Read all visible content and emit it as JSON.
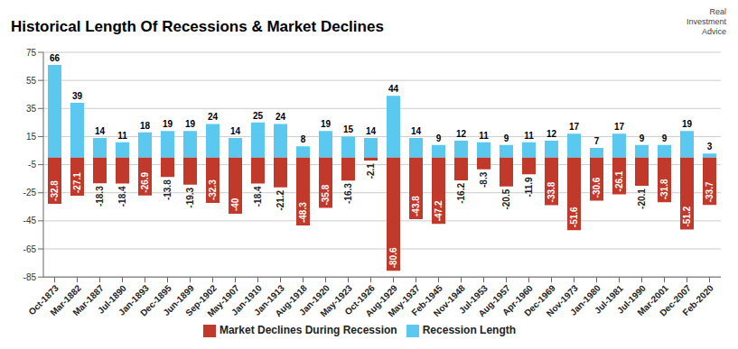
{
  "chart_data": {
    "type": "bar",
    "title": "Historical Length Of Recessions & Market Declines",
    "annotation": "Real\nInvestment\nAdvice",
    "categories": [
      "Oct-1873",
      "Mar-1882",
      "Mar-1887",
      "Jul-1890",
      "Jan-1893",
      "Dec-1895",
      "Jun-1899",
      "Sep-1902",
      "May-1907",
      "Jan-1910",
      "Jan-1913",
      "Aug-1918",
      "Jan-1920",
      "May-1923",
      "Oct-1926",
      "Aug-1929",
      "May-1937",
      "Feb-1945",
      "Nov-1948",
      "Jul-1953",
      "Aug-1957",
      "Apr-1960",
      "Dec-1969",
      "Nov-1973",
      "Jan-1980",
      "Jul-1981",
      "Jul-1990",
      "Mar-2001",
      "Dec-2007",
      "Feb-2020"
    ],
    "series": [
      {
        "name": "Recession Length",
        "color": "#5bc8f0",
        "values": [
          66,
          39,
          14,
          11,
          18,
          19,
          19,
          24,
          14,
          25,
          24,
          8,
          19,
          15,
          14,
          44,
          14,
          9,
          12,
          11,
          9,
          11,
          12,
          17,
          7,
          17,
          9,
          9,
          19,
          3
        ]
      },
      {
        "name": "Market Declines During Recession",
        "color": "#c0392b",
        "values": [
          -32.8,
          -27.1,
          -18.3,
          -18.4,
          -26.9,
          -13.8,
          -19.3,
          -32.3,
          -40.0,
          -18.4,
          -21.2,
          -48.3,
          -35.8,
          -16.3,
          -2.1,
          -80.6,
          -43.8,
          -47.2,
          -16.2,
          -8.3,
          -20.5,
          -11.9,
          -33.8,
          -51.6,
          -30.6,
          -26.1,
          -20.1,
          -31.8,
          -51.2,
          -33.7
        ]
      }
    ],
    "ylim": [
      -85,
      75
    ],
    "yticks": [
      -85,
      -65,
      -45,
      -25,
      -5,
      15,
      35,
      55,
      75
    ],
    "grid": true,
    "legend": "bottom",
    "data_labels": true
  }
}
